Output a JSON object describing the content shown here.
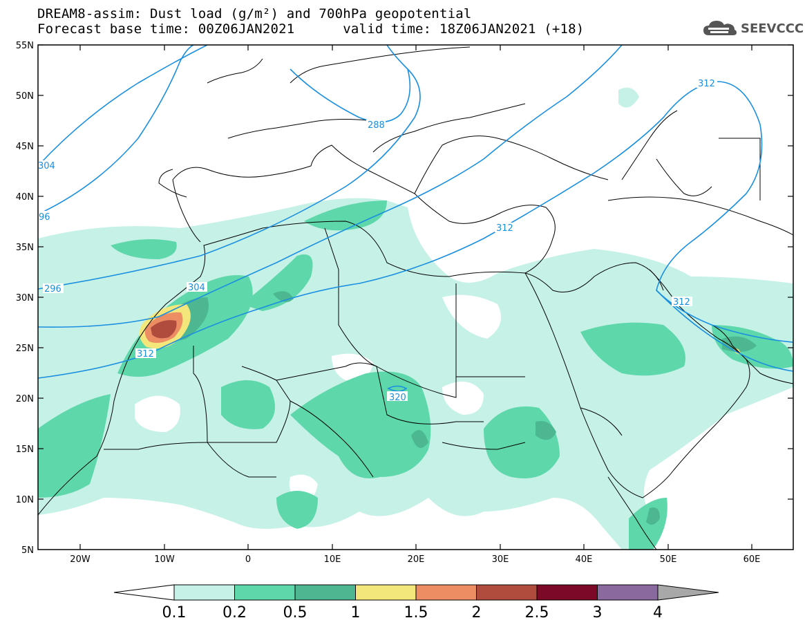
{
  "title_line1": "DREAM8-assim: Dust load (g/m²) and 700hPa geopotential",
  "title_line2": "Forecast base time: 00Z06JAN2021      valid time: 18Z06JAN2021 (+18)",
  "logo_text": "SEEVCCC",
  "lat_labels": [
    "55N",
    "50N",
    "45N",
    "40N",
    "35N",
    "30N",
    "25N",
    "20N",
    "15N",
    "10N",
    "5N"
  ],
  "lon_labels": [
    "20W",
    "10W",
    "0",
    "10E",
    "20E",
    "30E",
    "40E",
    "50E",
    "60E"
  ],
  "contour_labels": [
    "288",
    "312",
    "304",
    "96",
    "296",
    "304",
    "312",
    "320",
    "312",
    "312"
  ],
  "colorbar": {
    "labels": [
      "0.1",
      "0.2",
      "0.5",
      "1",
      "1.5",
      "2",
      "2.5",
      "3",
      "4"
    ],
    "colors": [
      "#c6f1e7",
      "#5ed8ab",
      "#4cb791",
      "#f3e67a",
      "#ec8d64",
      "#b04c3e",
      "#7c0a26",
      "#8a6a9e"
    ],
    "under_color": "#ffffff",
    "over_color": "#a8a8a8"
  },
  "colors": {
    "contour_line": "#1a8fe0",
    "coast": "#000000",
    "dust_level1": "#c6f1e7",
    "dust_level2": "#5ed8ab",
    "dust_level3": "#4cb791",
    "dust_level4": "#f3e67a",
    "dust_level5": "#ec8d64",
    "dust_level6": "#b04c3e"
  }
}
